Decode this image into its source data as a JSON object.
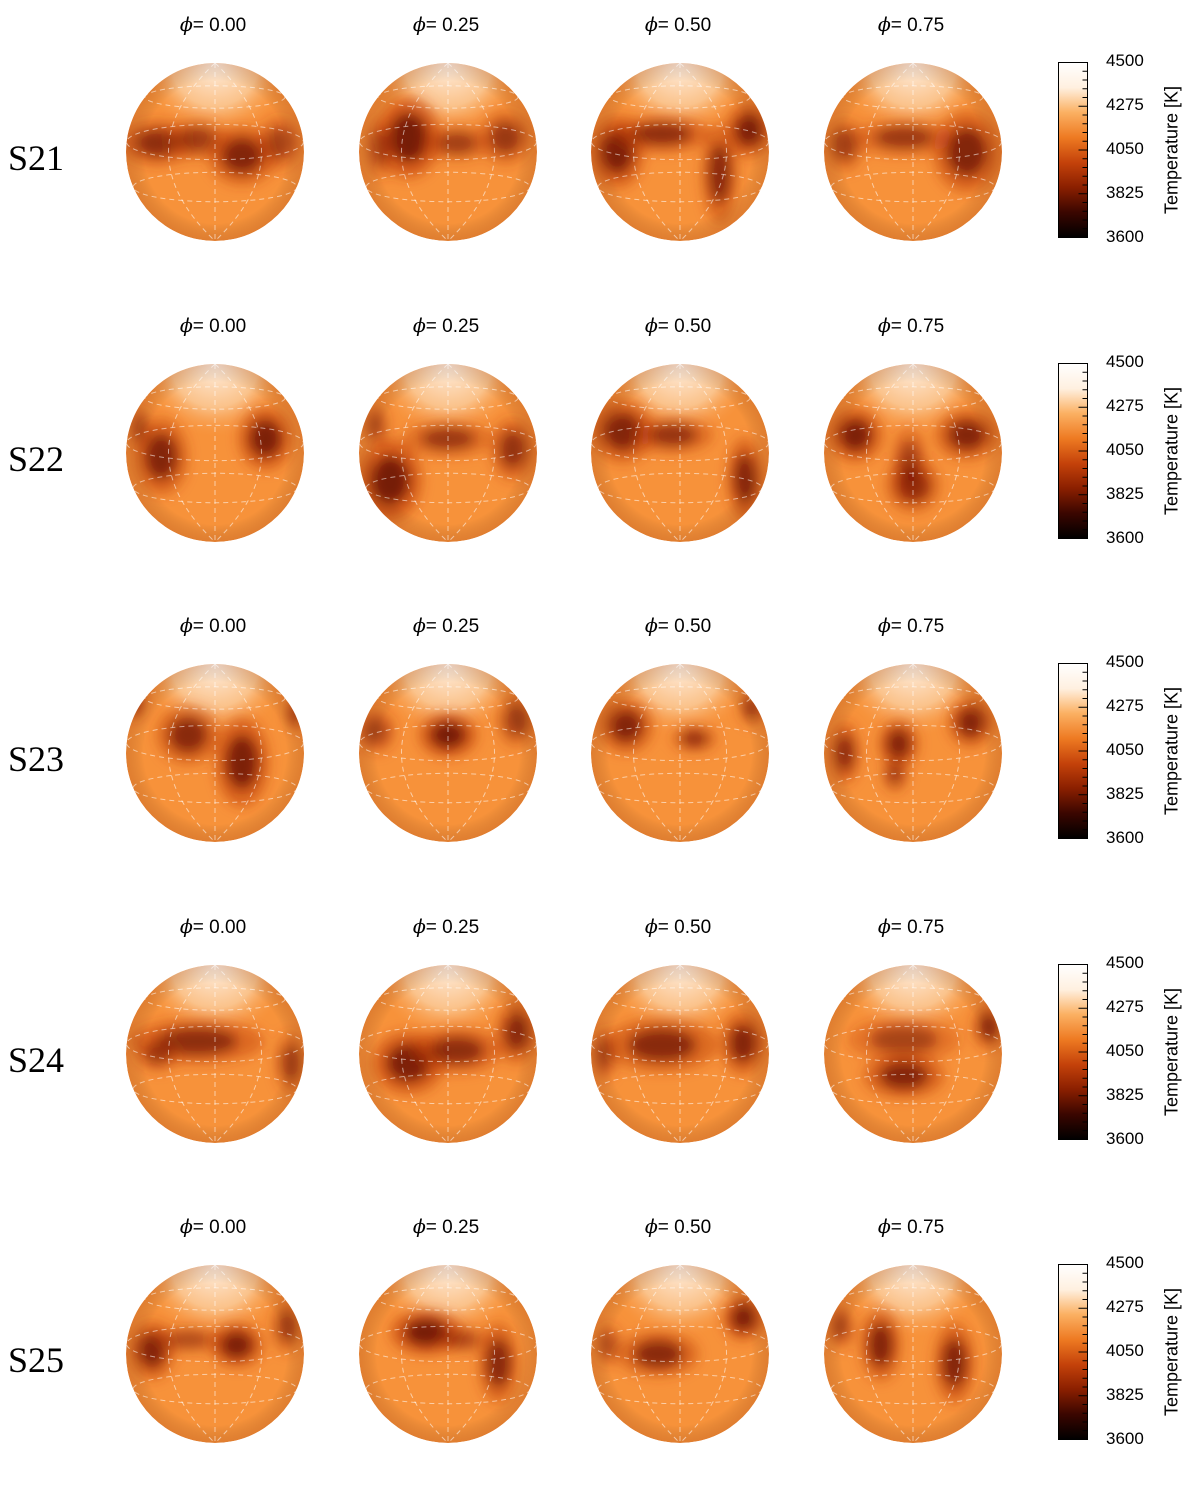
{
  "colorbar": {
    "title": "Temperature [K]",
    "ticks": [
      "4500",
      "4275",
      "4050",
      "3825",
      "3600"
    ],
    "range": [
      3600,
      4500
    ],
    "colormap": [
      "#000000",
      "#3a0600",
      "#8a1f00",
      "#c4420a",
      "#ee7a22",
      "#fbb062",
      "#fff0e0",
      "#ffffff"
    ]
  },
  "phase_prefix": "= ",
  "phase_symbol": "ϕ",
  "phases": [
    "0.00",
    "0.25",
    "0.50",
    "0.75"
  ],
  "colors": {
    "photosphere": "#f7923a",
    "spot": "#5a0800",
    "polar_cap": "#fff2e6",
    "grid_line": "#ffffff"
  },
  "rows": [
    {
      "label": "S21",
      "maps": [
        {
          "spots": [
            [
              0.18,
              0.45,
              0.16,
              0.1,
              0.75
            ],
            [
              0.4,
              0.43,
              0.14,
              0.09,
              0.6
            ],
            [
              0.65,
              0.52,
              0.15,
              0.13,
              0.85
            ],
            [
              0.86,
              0.45,
              0.1,
              0.12,
              0.55
            ]
          ]
        },
        {
          "spots": [
            [
              0.28,
              0.42,
              0.14,
              0.18,
              0.95
            ],
            [
              0.55,
              0.45,
              0.15,
              0.08,
              0.6
            ],
            [
              0.82,
              0.42,
              0.12,
              0.12,
              0.65
            ],
            [
              0.12,
              0.48,
              0.07,
              0.14,
              0.5
            ]
          ]
        },
        {
          "spots": [
            [
              0.15,
              0.5,
              0.12,
              0.16,
              0.9
            ],
            [
              0.4,
              0.4,
              0.22,
              0.08,
              0.75
            ],
            [
              0.72,
              0.62,
              0.08,
              0.22,
              0.8
            ],
            [
              0.88,
              0.38,
              0.1,
              0.12,
              0.9
            ]
          ]
        },
        {
          "spots": [
            [
              0.12,
              0.46,
              0.09,
              0.12,
              0.6
            ],
            [
              0.45,
              0.42,
              0.22,
              0.08,
              0.65
            ],
            [
              0.8,
              0.5,
              0.15,
              0.18,
              0.85
            ]
          ]
        }
      ]
    },
    {
      "label": "S22",
      "maps": [
        {
          "spots": [
            [
              0.2,
              0.52,
              0.12,
              0.17,
              0.85
            ],
            [
              0.78,
              0.42,
              0.12,
              0.14,
              0.9
            ],
            [
              0.08,
              0.36,
              0.05,
              0.1,
              0.5
            ]
          ]
        },
        {
          "spots": [
            [
              0.18,
              0.65,
              0.14,
              0.18,
              0.95
            ],
            [
              0.5,
              0.42,
              0.2,
              0.08,
              0.65
            ],
            [
              0.86,
              0.48,
              0.1,
              0.14,
              0.7
            ],
            [
              0.1,
              0.35,
              0.06,
              0.1,
              0.5
            ]
          ]
        },
        {
          "spots": [
            [
              0.18,
              0.38,
              0.14,
              0.14,
              0.85
            ],
            [
              0.46,
              0.4,
              0.18,
              0.08,
              0.7
            ],
            [
              0.86,
              0.64,
              0.08,
              0.18,
              0.85
            ]
          ]
        },
        {
          "spots": [
            [
              0.18,
              0.4,
              0.12,
              0.12,
              0.9
            ],
            [
              0.5,
              0.68,
              0.12,
              0.12,
              0.8
            ],
            [
              0.48,
              0.55,
              0.08,
              0.16,
              0.55
            ],
            [
              0.8,
              0.4,
              0.14,
              0.11,
              0.85
            ]
          ]
        }
      ]
    },
    {
      "label": "S23",
      "maps": [
        {
          "spots": [
            [
              0.35,
              0.4,
              0.14,
              0.13,
              0.8
            ],
            [
              0.65,
              0.55,
              0.12,
              0.2,
              0.9
            ],
            [
              0.05,
              0.22,
              0.05,
              0.08,
              0.7
            ],
            [
              0.95,
              0.28,
              0.05,
              0.08,
              0.6
            ]
          ]
        },
        {
          "spots": [
            [
              0.5,
              0.4,
              0.13,
              0.1,
              0.95
            ],
            [
              0.1,
              0.38,
              0.09,
              0.1,
              0.55
            ],
            [
              0.88,
              0.32,
              0.09,
              0.12,
              0.6
            ]
          ]
        },
        {
          "spots": [
            [
              0.2,
              0.35,
              0.12,
              0.12,
              0.85
            ],
            [
              0.58,
              0.42,
              0.1,
              0.06,
              0.7
            ],
            [
              0.9,
              0.25,
              0.06,
              0.08,
              0.6
            ]
          ]
        },
        {
          "spots": [
            [
              0.12,
              0.5,
              0.07,
              0.14,
              0.75
            ],
            [
              0.42,
              0.45,
              0.09,
              0.11,
              0.85
            ],
            [
              0.4,
              0.62,
              0.06,
              0.08,
              0.6
            ],
            [
              0.82,
              0.33,
              0.1,
              0.11,
              0.85
            ]
          ]
        }
      ]
    },
    {
      "label": "S24",
      "maps": [
        {
          "spots": [
            [
              0.4,
              0.43,
              0.3,
              0.1,
              0.75
            ],
            [
              0.18,
              0.5,
              0.1,
              0.08,
              0.55
            ],
            [
              0.92,
              0.55,
              0.07,
              0.14,
              0.6
            ]
          ]
        },
        {
          "spots": [
            [
              0.28,
              0.55,
              0.16,
              0.14,
              0.9
            ],
            [
              0.55,
              0.48,
              0.2,
              0.1,
              0.75
            ],
            [
              0.88,
              0.38,
              0.09,
              0.14,
              0.8
            ]
          ]
        },
        {
          "spots": [
            [
              0.4,
              0.45,
              0.25,
              0.12,
              0.8
            ],
            [
              0.85,
              0.44,
              0.1,
              0.14,
              0.85
            ],
            [
              0.08,
              0.5,
              0.06,
              0.12,
              0.55
            ]
          ]
        },
        {
          "spots": [
            [
              0.45,
              0.62,
              0.18,
              0.1,
              0.85
            ],
            [
              0.45,
              0.42,
              0.25,
              0.1,
              0.55
            ],
            [
              0.92,
              0.35,
              0.07,
              0.1,
              0.75
            ]
          ]
        }
      ]
    },
    {
      "label": "S25",
      "maps": [
        {
          "spots": [
            [
              0.15,
              0.48,
              0.1,
              0.13,
              0.85
            ],
            [
              0.62,
              0.45,
              0.12,
              0.1,
              0.9
            ],
            [
              0.9,
              0.35,
              0.07,
              0.12,
              0.6
            ],
            [
              0.35,
              0.42,
              0.16,
              0.06,
              0.5
            ]
          ]
        },
        {
          "spots": [
            [
              0.38,
              0.38,
              0.16,
              0.1,
              0.95
            ],
            [
              0.78,
              0.55,
              0.09,
              0.18,
              0.8
            ],
            [
              0.58,
              0.42,
              0.12,
              0.06,
              0.5
            ]
          ]
        },
        {
          "spots": [
            [
              0.38,
              0.5,
              0.18,
              0.1,
              0.8
            ],
            [
              0.85,
              0.3,
              0.09,
              0.1,
              0.9
            ],
            [
              0.1,
              0.45,
              0.06,
              0.1,
              0.5
            ]
          ]
        },
        {
          "spots": [
            [
              0.32,
              0.45,
              0.09,
              0.16,
              0.85
            ],
            [
              0.73,
              0.55,
              0.09,
              0.18,
              0.85
            ],
            [
              0.1,
              0.35,
              0.06,
              0.1,
              0.55
            ]
          ]
        }
      ]
    }
  ]
}
